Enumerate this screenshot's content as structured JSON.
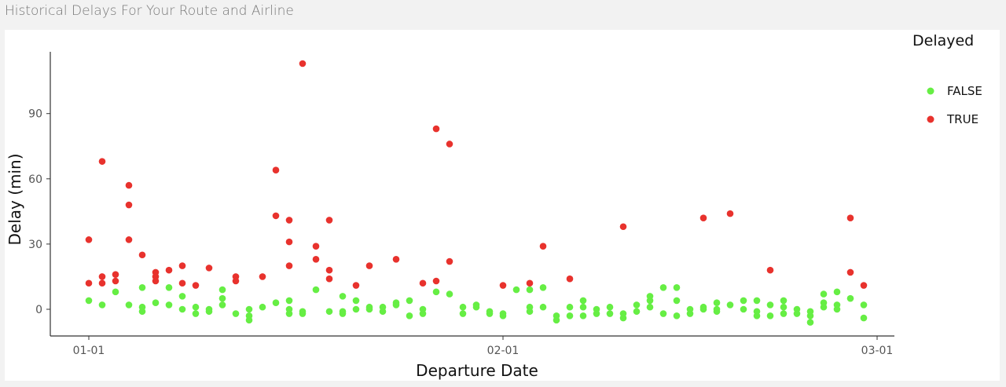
{
  "panel": {
    "title": "Historical Delays For Your Route and Airline"
  },
  "colors": {
    "delayed_true": "#e8322d",
    "delayed_false": "#66ee44",
    "axis": "#333333"
  },
  "chart_data": {
    "type": "scatter",
    "title": "",
    "xlabel": "Departure Date",
    "ylabel": "Delay (min)",
    "x_ticks": [
      "01-01",
      "02-01",
      "03-01"
    ],
    "y_ticks": [
      "0",
      "30",
      "60",
      "90"
    ],
    "xlim": [
      "2019-12-31",
      "2019-03-02"
    ],
    "ylim": [
      -12,
      120
    ],
    "grid": false,
    "legend": {
      "title": "Delayed",
      "position": "right",
      "entries": [
        "FALSE",
        "TRUE"
      ]
    },
    "series": [
      {
        "name": "FALSE",
        "color": "#66ee44",
        "points": [
          [
            "2019-01-01",
            4
          ],
          [
            "2019-01-02",
            2
          ],
          [
            "2019-01-03",
            8
          ],
          [
            "2019-01-04",
            2
          ],
          [
            "2019-01-05",
            10
          ],
          [
            "2019-01-05",
            1
          ],
          [
            "2019-01-05",
            -1
          ],
          [
            "2019-01-06",
            3
          ],
          [
            "2019-01-07",
            10
          ],
          [
            "2019-01-07",
            2
          ],
          [
            "2019-01-08",
            6
          ],
          [
            "2019-01-08",
            0
          ],
          [
            "2019-01-09",
            1
          ],
          [
            "2019-01-09",
            -2
          ],
          [
            "2019-01-10",
            0
          ],
          [
            "2019-01-10",
            -1
          ],
          [
            "2019-01-11",
            9
          ],
          [
            "2019-01-11",
            5
          ],
          [
            "2019-01-11",
            2
          ],
          [
            "2019-01-12",
            -2
          ],
          [
            "2019-01-13",
            0
          ],
          [
            "2019-01-13",
            -3
          ],
          [
            "2019-01-13",
            -5
          ],
          [
            "2019-01-14",
            1
          ],
          [
            "2019-01-15",
            3
          ],
          [
            "2019-01-16",
            4
          ],
          [
            "2019-01-16",
            0
          ],
          [
            "2019-01-16",
            -2
          ],
          [
            "2019-01-17",
            -1
          ],
          [
            "2019-01-17",
            -2
          ],
          [
            "2019-01-18",
            9
          ],
          [
            "2019-01-19",
            -1
          ],
          [
            "2019-01-20",
            6
          ],
          [
            "2019-01-20",
            -1
          ],
          [
            "2019-01-20",
            -2
          ],
          [
            "2019-01-21",
            4
          ],
          [
            "2019-01-21",
            0
          ],
          [
            "2019-01-22",
            1
          ],
          [
            "2019-01-22",
            0
          ],
          [
            "2019-01-23",
            1
          ],
          [
            "2019-01-23",
            -1
          ],
          [
            "2019-01-24",
            3
          ],
          [
            "2019-01-24",
            2
          ],
          [
            "2019-01-25",
            4
          ],
          [
            "2019-01-25",
            -3
          ],
          [
            "2019-01-26",
            0
          ],
          [
            "2019-01-26",
            -2
          ],
          [
            "2019-01-27",
            8
          ],
          [
            "2019-01-28",
            7
          ],
          [
            "2019-01-29",
            1
          ],
          [
            "2019-01-29",
            -2
          ],
          [
            "2019-01-30",
            2
          ],
          [
            "2019-01-30",
            1
          ],
          [
            "2019-01-31",
            -1
          ],
          [
            "2019-01-31",
            -2
          ],
          [
            "2019-02-01",
            -3
          ],
          [
            "2019-02-01",
            -2
          ],
          [
            "2019-02-02",
            9
          ],
          [
            "2019-02-03",
            1
          ],
          [
            "2019-02-03",
            9
          ],
          [
            "2019-02-03",
            -1
          ],
          [
            "2019-02-04",
            1
          ],
          [
            "2019-02-04",
            10
          ],
          [
            "2019-02-05",
            -3
          ],
          [
            "2019-02-05",
            -5
          ],
          [
            "2019-02-06",
            1
          ],
          [
            "2019-02-06",
            -3
          ],
          [
            "2019-02-07",
            4
          ],
          [
            "2019-02-07",
            1
          ],
          [
            "2019-02-07",
            -3
          ],
          [
            "2019-02-08",
            0
          ],
          [
            "2019-02-08",
            -2
          ],
          [
            "2019-02-09",
            1
          ],
          [
            "2019-02-09",
            -2
          ],
          [
            "2019-02-10",
            -4
          ],
          [
            "2019-02-10",
            -2
          ],
          [
            "2019-02-11",
            2
          ],
          [
            "2019-02-11",
            -1
          ],
          [
            "2019-02-12",
            6
          ],
          [
            "2019-02-12",
            4
          ],
          [
            "2019-02-12",
            1
          ],
          [
            "2019-02-13",
            10
          ],
          [
            "2019-02-13",
            -2
          ],
          [
            "2019-02-14",
            10
          ],
          [
            "2019-02-14",
            4
          ],
          [
            "2019-02-14",
            -3
          ],
          [
            "2019-02-15",
            0
          ],
          [
            "2019-02-15",
            -2
          ],
          [
            "2019-02-16",
            1
          ],
          [
            "2019-02-16",
            0
          ],
          [
            "2019-02-17",
            3
          ],
          [
            "2019-02-17",
            0
          ],
          [
            "2019-02-17",
            -1
          ],
          [
            "2019-02-18",
            2
          ],
          [
            "2019-02-19",
            4
          ],
          [
            "2019-02-19",
            0
          ],
          [
            "2019-02-20",
            4
          ],
          [
            "2019-02-20",
            -1
          ],
          [
            "2019-02-20",
            -3
          ],
          [
            "2019-02-21",
            2
          ],
          [
            "2019-02-21",
            -3
          ],
          [
            "2019-02-22",
            4
          ],
          [
            "2019-02-22",
            1
          ],
          [
            "2019-02-22",
            -2
          ],
          [
            "2019-02-23",
            0
          ],
          [
            "2019-02-23",
            -2
          ],
          [
            "2019-02-24",
            -1
          ],
          [
            "2019-02-24",
            -3
          ],
          [
            "2019-02-24",
            -6
          ],
          [
            "2019-02-25",
            7
          ],
          [
            "2019-02-25",
            3
          ],
          [
            "2019-02-25",
            1
          ],
          [
            "2019-02-26",
            8
          ],
          [
            "2019-02-26",
            2
          ],
          [
            "2019-02-26",
            0
          ],
          [
            "2019-02-27",
            5
          ],
          [
            "2019-02-28",
            2
          ],
          [
            "2019-02-28",
            -4
          ]
        ]
      },
      {
        "name": "TRUE",
        "color": "#e8322d",
        "points": [
          [
            "2019-01-01",
            32
          ],
          [
            "2019-01-01",
            12
          ],
          [
            "2019-01-02",
            68
          ],
          [
            "2019-01-02",
            15
          ],
          [
            "2019-01-02",
            12
          ],
          [
            "2019-01-03",
            16
          ],
          [
            "2019-01-03",
            13
          ],
          [
            "2019-01-04",
            57
          ],
          [
            "2019-01-04",
            48
          ],
          [
            "2019-01-04",
            32
          ],
          [
            "2019-01-05",
            25
          ],
          [
            "2019-01-06",
            17
          ],
          [
            "2019-01-06",
            15
          ],
          [
            "2019-01-06",
            13
          ],
          [
            "2019-01-07",
            18
          ],
          [
            "2019-01-08",
            20
          ],
          [
            "2019-01-08",
            12
          ],
          [
            "2019-01-09",
            11
          ],
          [
            "2019-01-10",
            19
          ],
          [
            "2019-01-12",
            15
          ],
          [
            "2019-01-12",
            13
          ],
          [
            "2019-01-14",
            15
          ],
          [
            "2019-01-15",
            64
          ],
          [
            "2019-01-15",
            43
          ],
          [
            "2019-01-16",
            41
          ],
          [
            "2019-01-16",
            31
          ],
          [
            "2019-01-16",
            20
          ],
          [
            "2019-01-17",
            113
          ],
          [
            "2019-01-18",
            29
          ],
          [
            "2019-01-18",
            23
          ],
          [
            "2019-01-19",
            41
          ],
          [
            "2019-01-19",
            18
          ],
          [
            "2019-01-19",
            14
          ],
          [
            "2019-01-21",
            11
          ],
          [
            "2019-01-22",
            20
          ],
          [
            "2019-01-24",
            23
          ],
          [
            "2019-01-26",
            12
          ],
          [
            "2019-01-27",
            83
          ],
          [
            "2019-01-27",
            13
          ],
          [
            "2019-01-28",
            76
          ],
          [
            "2019-01-28",
            22
          ],
          [
            "2019-02-01",
            11
          ],
          [
            "2019-02-03",
            12
          ],
          [
            "2019-02-04",
            29
          ],
          [
            "2019-02-06",
            14
          ],
          [
            "2019-02-10",
            38
          ],
          [
            "2019-02-16",
            42
          ],
          [
            "2019-02-18",
            44
          ],
          [
            "2019-02-21",
            18
          ],
          [
            "2019-02-27",
            42
          ],
          [
            "2019-02-27",
            17
          ],
          [
            "2019-02-28",
            11
          ]
        ]
      }
    ]
  }
}
